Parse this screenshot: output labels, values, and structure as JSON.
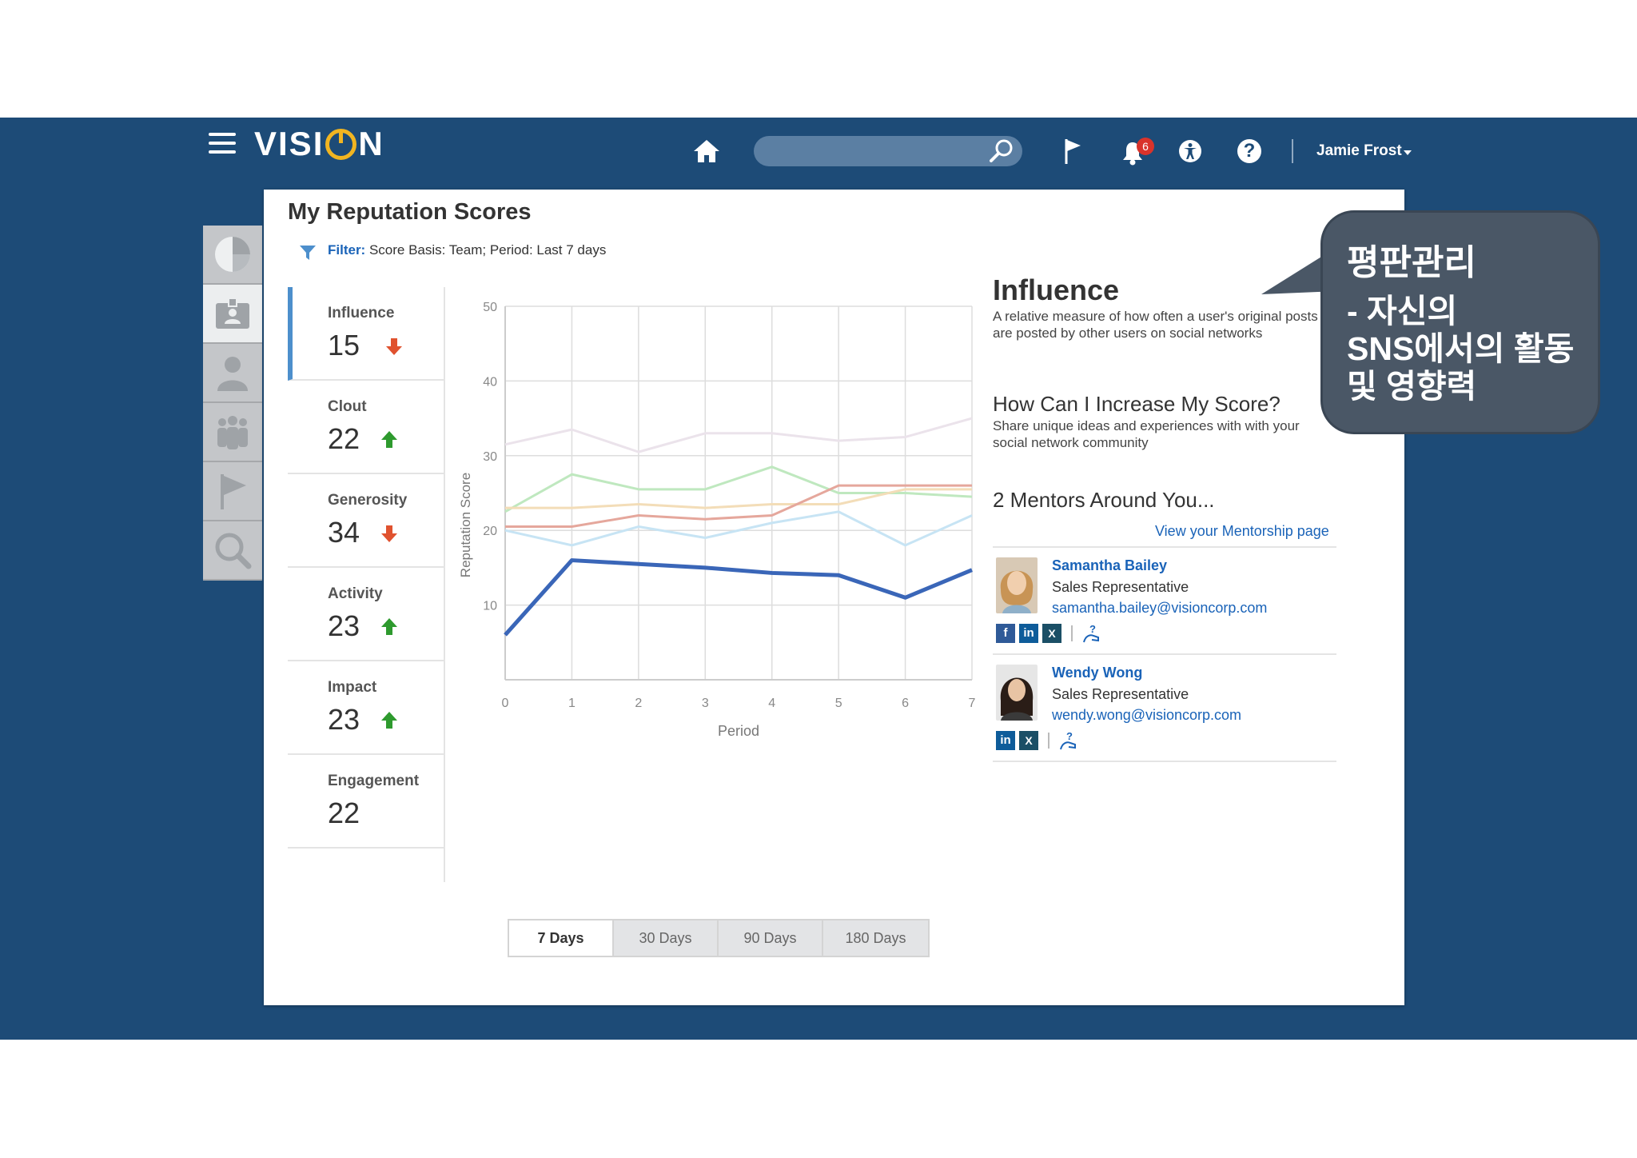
{
  "header": {
    "logo_text_1": "VISI",
    "logo_text_2": "N",
    "notifications_count": "6",
    "user_name": "Jamie Frost"
  },
  "page": {
    "title": "My Reputation Scores",
    "filter_label": "Filter:",
    "filter_text": " Score Basis: Team; Period: Last 7 days"
  },
  "metrics": [
    {
      "label": "Influence",
      "value": "15",
      "trend": "down"
    },
    {
      "label": "Clout",
      "value": "22",
      "trend": "up"
    },
    {
      "label": "Generosity",
      "value": "34",
      "trend": "down"
    },
    {
      "label": "Activity",
      "value": "23",
      "trend": "up"
    },
    {
      "label": "Impact",
      "value": "23",
      "trend": "up"
    },
    {
      "label": "Engagement",
      "value": "22",
      "trend": ""
    }
  ],
  "tabs": [
    {
      "label": "7 Days",
      "active": true
    },
    {
      "label": "30 Days",
      "active": false
    },
    {
      "label": "90 Days",
      "active": false
    },
    {
      "label": "180 Days",
      "active": false
    }
  ],
  "info": {
    "title": "Influence",
    "description": "A relative measure of how often a user's original posts are posted by other users on social networks",
    "increase_title": "How Can I Increase My Score?",
    "increase_desc": "Share unique ideas and experiences with with your social network community",
    "mentors_title": "2 Mentors Around You...",
    "mentor_link": "View your Mentorship page"
  },
  "mentors": [
    {
      "name": "Samantha Bailey",
      "role": "Sales Representative",
      "email": "samantha.bailey@visioncorp.com",
      "socials": [
        "f",
        "in",
        "X"
      ]
    },
    {
      "name": "Wendy Wong",
      "role": "Sales Representative",
      "email": "wendy.wong@visioncorp.com",
      "socials": [
        "in",
        "X"
      ]
    }
  ],
  "callout": {
    "title": "평판관리",
    "line1": "- 자신의",
    "line2": "SNS에서의 활동",
    "line3": "및 영향력"
  },
  "colors": {
    "band": "#1d4b77",
    "accent_blue": "#1a63b8",
    "arrow_down": "#e0522f",
    "arrow_up": "#2e9a2e"
  },
  "chart_data": {
    "type": "line",
    "xlabel": "Period",
    "ylabel": "Reputation Score",
    "xlim": [
      0,
      7
    ],
    "ylim": [
      0,
      50
    ],
    "x_ticks": [
      0,
      1,
      2,
      3,
      4,
      5,
      6,
      7
    ],
    "y_ticks": [
      10,
      20,
      30,
      40,
      50
    ],
    "grid": true,
    "legend_position": "bottom",
    "x": [
      0,
      1,
      2,
      3,
      4,
      5,
      6,
      7
    ],
    "series": [
      {
        "name": "Influence",
        "color": "#3a66b8",
        "values": [
          6,
          16,
          15.5,
          15,
          14.3,
          14,
          11,
          14.7
        ]
      },
      {
        "name": "Clout",
        "color": "#e5a79c",
        "values": [
          20.5,
          20.5,
          22,
          21.5,
          22,
          26,
          26,
          26
        ]
      },
      {
        "name": "Generosity",
        "color": "#ebe3eb",
        "values": [
          31.5,
          33.5,
          30.5,
          33,
          33,
          32,
          32.5,
          35
        ]
      },
      {
        "name": "Activity",
        "color": "#f3ddb8",
        "values": [
          23,
          23,
          23.5,
          23,
          23.5,
          23.5,
          25.5,
          25.5
        ]
      },
      {
        "name": "Impact",
        "color": "#bfe8bf",
        "values": [
          22.5,
          27.5,
          25.5,
          25.5,
          28.5,
          25,
          25,
          24.5
        ]
      },
      {
        "name": "Engagement",
        "color": "#c7e4f4",
        "values": [
          20,
          18,
          20.5,
          19,
          21,
          22.5,
          18,
          22
        ]
      }
    ],
    "legend_colors": [
      "#26477a",
      "#c8432d",
      "#b06ec9",
      "#f3e4a6",
      "#8ed88e",
      "#5bb4e8"
    ]
  }
}
